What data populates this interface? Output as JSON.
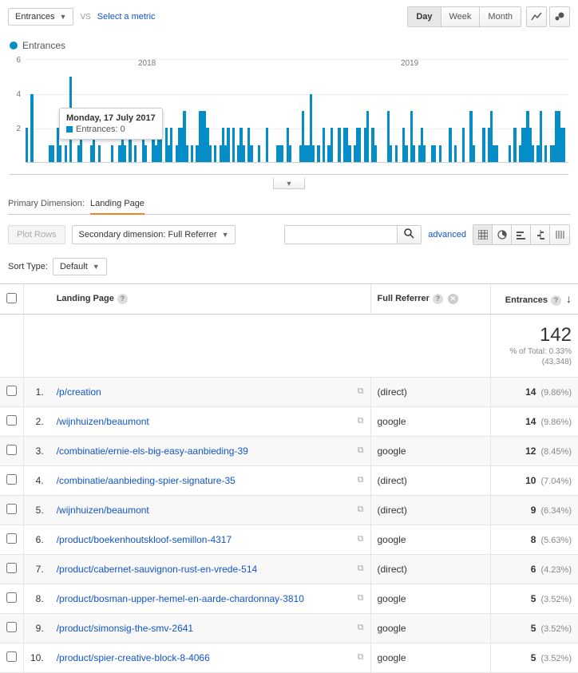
{
  "colors": {
    "accent": "#058dc7",
    "link": "#1155cc",
    "tab_underline": "#f58025"
  },
  "top": {
    "metric_label": "Entrances",
    "vs": "VS",
    "select_metric": "Select a metric",
    "time": {
      "day": "Day",
      "week": "Week",
      "month": "Month",
      "active": "Day"
    }
  },
  "chart": {
    "legend": "Entrances",
    "y_ticks": [
      2,
      4,
      6
    ],
    "y_max": 6,
    "x_labels": [
      "2018",
      "2019"
    ],
    "tooltip": {
      "title": "Monday, 17 July 2017",
      "metric": "Entrances: 0"
    },
    "bars": [
      2,
      0,
      4,
      0,
      0,
      0,
      0,
      0,
      0,
      1,
      1,
      0,
      2,
      1,
      0,
      1,
      0,
      5,
      0,
      0,
      1,
      2,
      0,
      0,
      0,
      1,
      3,
      0,
      1,
      0,
      0,
      0,
      0,
      1,
      0,
      0,
      1,
      3,
      1,
      0,
      2,
      0,
      1,
      0,
      0,
      2,
      1,
      0,
      0,
      2,
      1,
      2,
      3,
      0,
      2,
      1,
      2,
      0,
      1,
      2,
      2,
      3,
      1,
      0,
      1,
      0,
      1,
      3,
      3,
      3,
      2,
      1,
      0,
      1,
      0,
      1,
      2,
      1,
      2,
      0,
      2,
      0,
      1,
      2,
      1,
      0,
      2,
      1,
      0,
      0,
      1,
      0,
      0,
      2,
      0,
      0,
      0,
      1,
      1,
      1,
      0,
      2,
      1,
      0,
      0,
      0,
      1,
      3,
      1,
      1,
      4,
      1,
      0,
      1,
      0,
      2,
      0,
      1,
      2,
      0,
      0,
      2,
      0,
      2,
      2,
      1,
      0,
      1,
      2,
      2,
      0,
      2,
      3,
      0,
      2,
      1,
      0,
      0,
      0,
      0,
      3,
      1,
      0,
      1,
      0,
      0,
      2,
      1,
      0,
      3,
      1,
      0,
      1,
      2,
      1,
      0,
      0,
      1,
      1,
      0,
      1,
      0,
      0,
      0,
      2,
      0,
      1,
      0,
      0,
      2,
      0,
      0,
      3,
      1,
      0,
      0,
      0,
      2,
      0,
      2,
      3,
      1,
      1,
      0,
      0,
      0,
      0,
      1,
      0,
      2,
      0,
      1,
      2,
      2,
      3,
      2,
      1,
      0,
      1,
      3,
      0,
      1,
      0,
      1,
      1,
      3,
      3,
      2,
      2,
      0
    ]
  },
  "dimension": {
    "label": "Primary Dimension:",
    "value": "Landing Page"
  },
  "controls": {
    "plot_rows": "Plot Rows",
    "secondary_dim": "Secondary dimension: Full Referrer",
    "advanced": "advanced",
    "sort_label": "Sort Type:",
    "sort_value": "Default"
  },
  "table": {
    "headers": {
      "landing_page": "Landing Page",
      "full_referrer": "Full Referrer",
      "entrances": "Entrances"
    },
    "total": {
      "value": "142",
      "pct": "% of Total: 0.33%",
      "base": "(43,348)"
    },
    "rows": [
      {
        "n": "1.",
        "page": "/p/creation",
        "ref": "(direct)",
        "ent": "14",
        "pct": "(9.86%)"
      },
      {
        "n": "2.",
        "page": "/wijnhuizen/beaumont",
        "ref": "google",
        "ent": "14",
        "pct": "(9.86%)"
      },
      {
        "n": "3.",
        "page": "/combinatie/ernie-els-big-easy-aanbieding-39",
        "ref": "google",
        "ent": "12",
        "pct": "(8.45%)"
      },
      {
        "n": "4.",
        "page": "/combinatie/aanbieding-spier-signature-35",
        "ref": "(direct)",
        "ent": "10",
        "pct": "(7.04%)"
      },
      {
        "n": "5.",
        "page": "/wijnhuizen/beaumont",
        "ref": "(direct)",
        "ent": "9",
        "pct": "(6.34%)"
      },
      {
        "n": "6.",
        "page": "/product/boekenhoutskloof-semillon-4317",
        "ref": "google",
        "ent": "8",
        "pct": "(5.63%)"
      },
      {
        "n": "7.",
        "page": "/product/cabernet-sauvignon-rust-en-vrede-514",
        "ref": "(direct)",
        "ent": "6",
        "pct": "(4.23%)"
      },
      {
        "n": "8.",
        "page": "/product/bosman-upper-hemel-en-aarde-chardonnay-3810",
        "ref": "google",
        "ent": "5",
        "pct": "(3.52%)"
      },
      {
        "n": "9.",
        "page": "/product/simonsig-the-smv-2641",
        "ref": "google",
        "ent": "5",
        "pct": "(3.52%)"
      },
      {
        "n": "10.",
        "page": "/product/spier-creative-block-8-4066",
        "ref": "google",
        "ent": "5",
        "pct": "(3.52%)"
      }
    ]
  }
}
